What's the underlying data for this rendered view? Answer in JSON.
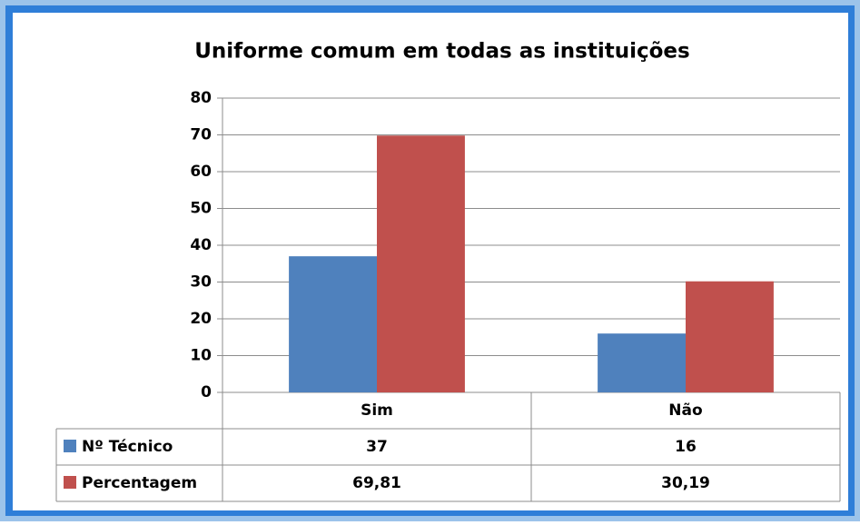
{
  "chart_data": {
    "type": "bar",
    "title": "Uniforme comum em todas as instituições",
    "categories": [
      "Sim",
      "Não"
    ],
    "series": [
      {
        "name": "Nº Técnico",
        "color": "#4f81bd",
        "values": [
          37,
          16
        ]
      },
      {
        "name": "Percentagem",
        "color": "#c0504d",
        "values": [
          69.81,
          30.19
        ],
        "value_labels": [
          "69,81",
          "30,19"
        ]
      }
    ],
    "ylim": [
      0,
      80
    ],
    "yticks": [
      0,
      10,
      20,
      30,
      40,
      50,
      60,
      70,
      80
    ],
    "grid": true
  }
}
